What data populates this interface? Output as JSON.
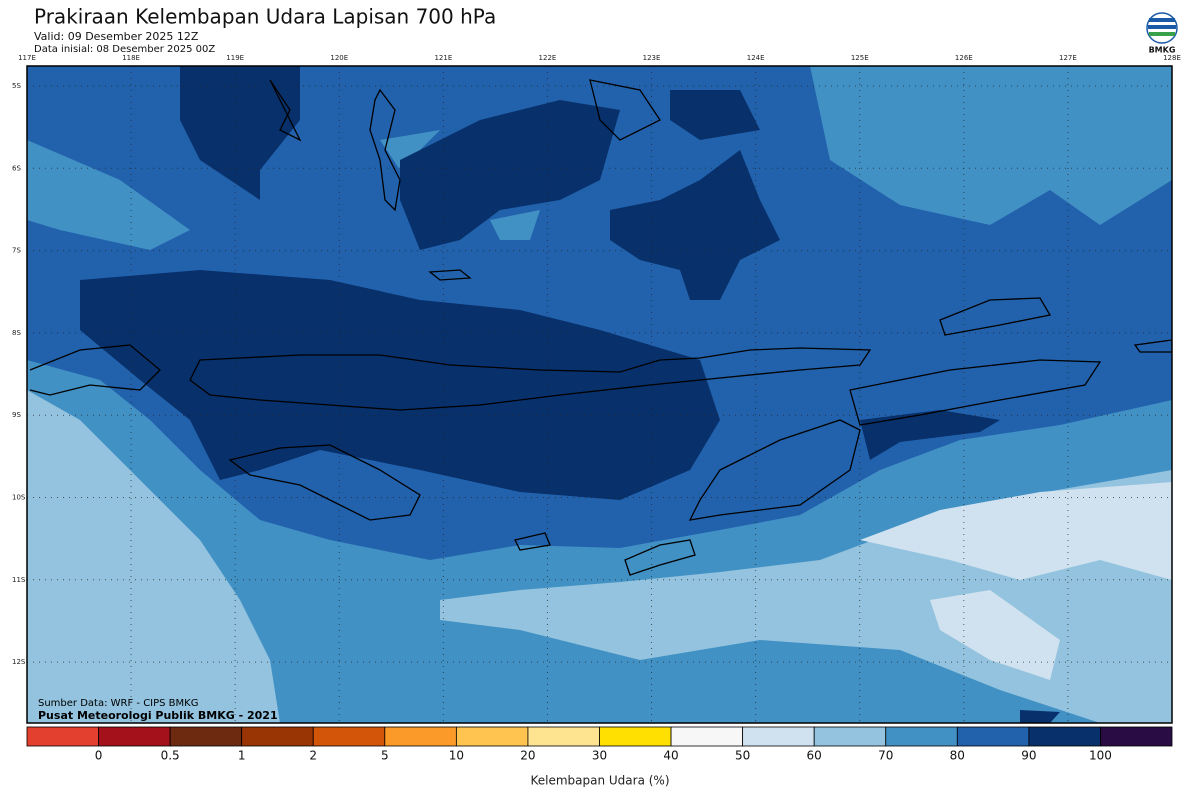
{
  "header": {
    "title": "Prakiraan Kelembapan Udara Lapisan 700 hPa",
    "valid": "Valid: 09 Desember 2025 12Z",
    "initial": "Data inisial: 08 Desember 2025 00Z"
  },
  "logo": {
    "text": "BMKG"
  },
  "map": {
    "lon_labels": [
      "117E",
      "118E",
      "119E",
      "120E",
      "121E",
      "122E",
      "123E",
      "124E",
      "125E",
      "126E",
      "127E",
      "128E"
    ],
    "lat_labels": [
      "5S",
      "6S",
      "7S",
      "8S",
      "9S",
      "10S",
      "11S",
      "12S"
    ],
    "source": "Sumber Data: WRF - CIPS BMKG",
    "credit": "Pusat Meteorologi Publik BMKG - 2021"
  },
  "legend": {
    "title": "Kelembapan Udara (%)",
    "labels": [
      "0",
      "0.5",
      "1",
      "2",
      "5",
      "10",
      "20",
      "30",
      "40",
      "50",
      "60",
      "70",
      "80",
      "90",
      "100"
    ],
    "colors": [
      "#e3402f",
      "#a5111a",
      "#6e2a10",
      "#993404",
      "#d2550a",
      "#fb9a29",
      "#fec44f",
      "#fee391",
      "#ffe000",
      "#f7f7f7",
      "#d0e2ef",
      "#93c3de",
      "#4291c5",
      "#2262ad",
      "#08306b",
      "#2a0c45"
    ]
  }
}
